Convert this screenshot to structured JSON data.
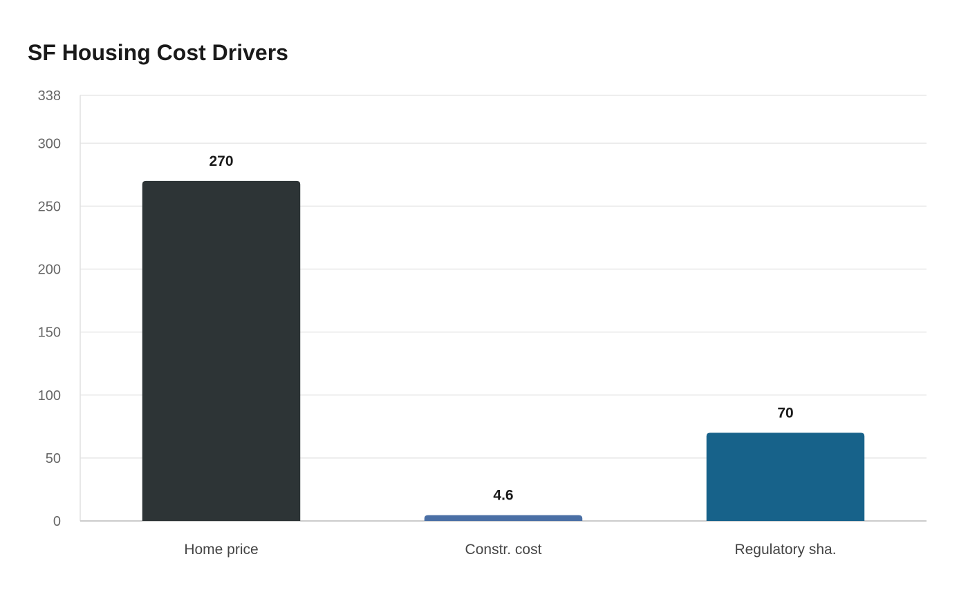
{
  "chart_data": {
    "type": "bar",
    "title": "SF Housing Cost Drivers",
    "xlabel": "",
    "ylabel": "",
    "categories": [
      "Home price",
      "Constr. cost",
      "Regulatory sha."
    ],
    "values": [
      270,
      4.6,
      70
    ],
    "value_labels": [
      "270",
      "4.6",
      "70"
    ],
    "colors": [
      "#2d3436",
      "#4a6fa5",
      "#17628a"
    ],
    "ylim": [
      0,
      338
    ],
    "yticks": [
      0,
      50,
      100,
      150,
      200,
      250,
      300,
      338
    ],
    "grid": true,
    "legend": "none"
  }
}
